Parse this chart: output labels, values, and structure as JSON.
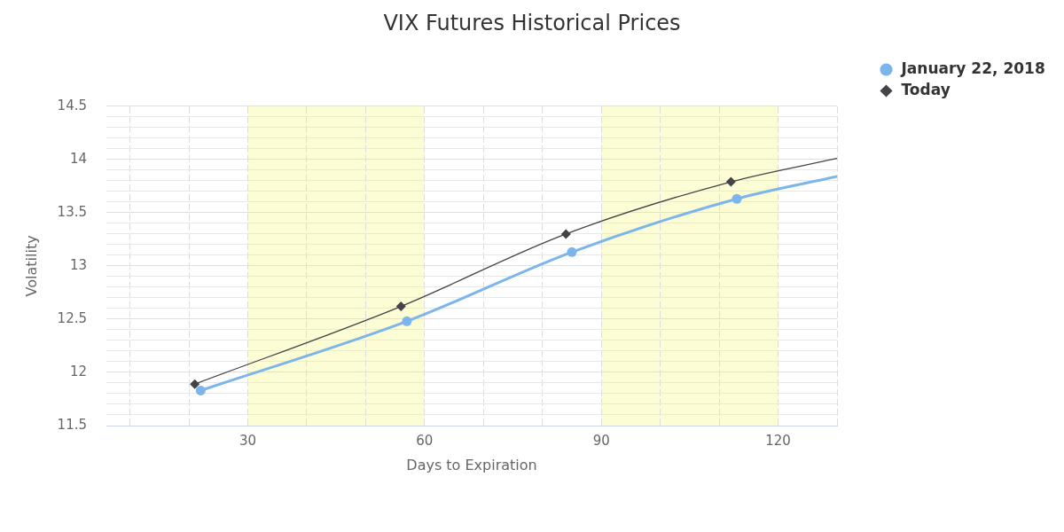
{
  "chart_data": {
    "type": "line",
    "title": "VIX Futures Historical Prices",
    "xlabel": "Days to Expiration",
    "ylabel": "Volatility",
    "xlim": [
      6,
      130
    ],
    "xticks": [
      {
        "value": 10,
        "label": null
      },
      {
        "value": 20,
        "label": null
      },
      30,
      {
        "value": 40,
        "label": null
      },
      {
        "value": 50,
        "label": null
      },
      60,
      {
        "value": 70,
        "label": null
      },
      {
        "value": 80,
        "label": null
      },
      90,
      {
        "value": 100,
        "label": null
      },
      {
        "value": 110,
        "label": null
      },
      120,
      {
        "value": 130,
        "label": null
      }
    ],
    "ylim": [
      11.5,
      14.5
    ],
    "yticks": [
      11.5,
      {
        "value": 11.6,
        "label": null
      },
      {
        "value": 11.7,
        "label": null
      },
      {
        "value": 11.8,
        "label": null
      },
      {
        "value": 11.9,
        "label": null
      },
      12,
      {
        "value": 12.1,
        "label": null
      },
      {
        "value": 12.2,
        "label": null
      },
      {
        "value": 12.3,
        "label": null
      },
      {
        "value": 12.4,
        "label": null
      },
      12.5,
      {
        "value": 12.6,
        "label": null
      },
      {
        "value": 12.7,
        "label": null
      },
      {
        "value": 12.8,
        "label": null
      },
      {
        "value": 12.9,
        "label": null
      },
      13,
      {
        "value": 13.1,
        "label": null
      },
      {
        "value": 13.2,
        "label": null
      },
      {
        "value": 13.3,
        "label": null
      },
      {
        "value": 13.4,
        "label": null
      },
      13.5,
      {
        "value": 13.6,
        "label": null
      },
      {
        "value": 13.7,
        "label": null
      },
      {
        "value": 13.8,
        "label": null
      },
      {
        "value": 13.9,
        "label": null
      },
      14,
      {
        "value": 14.1,
        "label": null
      },
      {
        "value": 14.2,
        "label": null
      },
      {
        "value": 14.3,
        "label": null
      },
      {
        "value": 14.4,
        "label": null
      },
      14.5
    ],
    "bands": [
      {
        "axis": "x",
        "from": 30,
        "to": 60,
        "color": "#fdfdd5"
      },
      {
        "axis": "x",
        "from": 90,
        "to": 120,
        "color": "#fdfdd5"
      }
    ],
    "grid": true,
    "legend": "top right",
    "line_style": "solid",
    "series": [
      {
        "name": "January 22, 2018",
        "color": "#7cb5ec",
        "marker": "circle",
        "x": [
          22,
          57,
          85,
          113,
          130
        ],
        "values": [
          11.83,
          12.48,
          13.13,
          13.63,
          13.84
        ]
      },
      {
        "name": "Today",
        "color": "#434348",
        "marker": "diamond",
        "x": [
          21,
          56,
          84,
          112,
          130
        ],
        "values": [
          11.89,
          12.62,
          13.3,
          13.79,
          14.01
        ]
      }
    ]
  }
}
